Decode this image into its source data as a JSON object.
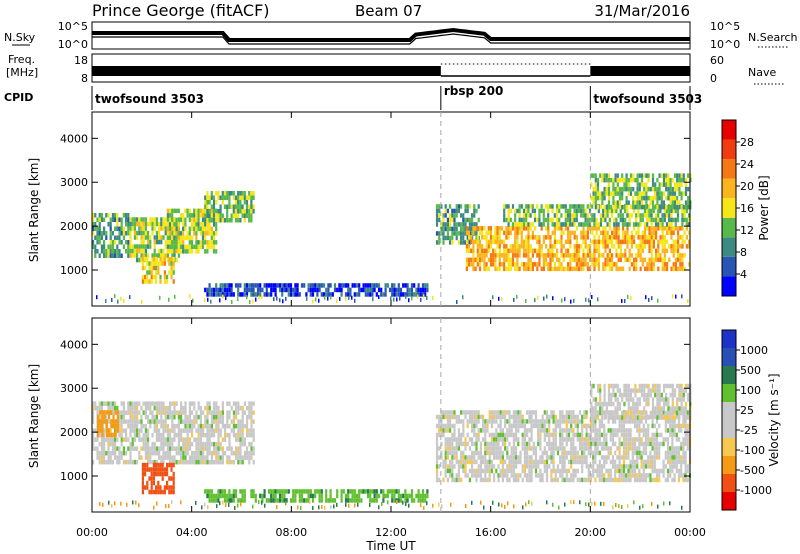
{
  "header": {
    "station": "Prince George (fitACF)",
    "beam": "Beam 07",
    "date": "31/Mar/2016"
  },
  "strip_labels": {
    "nsky": "N.Sky",
    "freq_line1": "Freq.",
    "freq_line2": "[MHz]",
    "cpid": "CPID",
    "nsearch": "N.Search",
    "nave": "Nave"
  },
  "strip_ticks": {
    "nsky_left": [
      "10^5",
      "10^0"
    ],
    "nsky_right": [
      "10^5",
      "10^0"
    ],
    "freq_left": [
      "18",
      "8"
    ],
    "freq_right": [
      "60",
      "0"
    ]
  },
  "cpid_segments": [
    {
      "label": "twofsound 3503",
      "start_hour": 0
    },
    {
      "label": "rbsp 200",
      "start_hour": 14
    },
    {
      "label": "twofsound 3503",
      "start_hour": 20
    }
  ],
  "colors": {
    "power": [
      "#0000ff",
      "#2855b5",
      "#3c8a82",
      "#58b84a",
      "#f5e61a",
      "#fab41e",
      "#f57814",
      "#f03c0f",
      "#e60000"
    ],
    "velocity": [
      "#e60000",
      "#f05014",
      "#f59a14",
      "#f7c850",
      "#c8c8c8",
      "#c8c8c8",
      "#60c030",
      "#287850",
      "#2850b4",
      "#1e32c8"
    ]
  },
  "chart_data": [
    {
      "type": "heatmap",
      "name": "Power",
      "xlabel": "",
      "ylabel": "Slant Range [km]",
      "xlim": [
        0,
        24
      ],
      "ylim": [
        180,
        4600
      ],
      "yticks": [
        "1000",
        "2000",
        "3000",
        "4000"
      ],
      "colorbar": {
        "label": "Power [dB]",
        "ticks": [
          "4",
          "8",
          "12",
          "16",
          "20",
          "24",
          "28"
        ],
        "range": [
          0,
          32
        ]
      },
      "bands": [
        {
          "t0": 0.0,
          "t1": 1.5,
          "r0": 1300,
          "r1": 2300,
          "level": 12
        },
        {
          "t0": 1.5,
          "t1": 3.5,
          "r0": 1200,
          "r1": 2200,
          "level": 16
        },
        {
          "t0": 2.0,
          "t1": 3.3,
          "r0": 700,
          "r1": 1300,
          "level": 20
        },
        {
          "t0": 3.0,
          "t1": 5.0,
          "r0": 1400,
          "r1": 2400,
          "level": 16
        },
        {
          "t0": 4.5,
          "t1": 6.5,
          "r0": 2100,
          "r1": 2800,
          "level": 14
        },
        {
          "t0": 4.5,
          "t1": 13.5,
          "r0": 400,
          "r1": 700,
          "level": 5
        },
        {
          "t0": 13.8,
          "t1": 15.5,
          "r0": 1600,
          "r1": 2500,
          "level": 12
        },
        {
          "t0": 15.0,
          "t1": 24.0,
          "r0": 1000,
          "r1": 2000,
          "level": 22
        },
        {
          "t0": 16.5,
          "t1": 24.0,
          "r0": 2000,
          "r1": 2500,
          "level": 14
        },
        {
          "t0": 20.0,
          "t1": 24.0,
          "r0": 2400,
          "r1": 3200,
          "level": 14
        }
      ]
    },
    {
      "type": "heatmap",
      "name": "Velocity",
      "xlabel": "Time UT",
      "ylabel": "Slant Range [km]",
      "xlim": [
        0,
        24
      ],
      "ylim": [
        180,
        4600
      ],
      "yticks": [
        "1000",
        "2000",
        "3000",
        "4000"
      ],
      "xticks": [
        "00:00",
        "04:00",
        "08:00",
        "12:00",
        "16:00",
        "20:00",
        "00:00"
      ],
      "colorbar": {
        "label": "Velocity [m s⁻¹]",
        "ticks": [
          "-1000",
          "-500",
          "-100",
          "-25",
          "25",
          "100",
          "500",
          "1000"
        ]
      },
      "bands": [
        {
          "t0": 0.0,
          "t1": 6.5,
          "r0": 1300,
          "r1": 2700,
          "level": 0
        },
        {
          "t0": 0.2,
          "t1": 1.0,
          "r0": 1900,
          "r1": 2500,
          "level": -300
        },
        {
          "t0": 2.0,
          "t1": 3.3,
          "r0": 600,
          "r1": 1300,
          "level": -600
        },
        {
          "t0": 4.5,
          "t1": 13.5,
          "r0": 400,
          "r1": 700,
          "level": 80
        },
        {
          "t0": 13.8,
          "t1": 24.0,
          "r0": 900,
          "r1": 2500,
          "level": 0
        },
        {
          "t0": 20.0,
          "t1": 24.0,
          "r0": 2300,
          "r1": 3100,
          "level": 0
        }
      ]
    }
  ]
}
